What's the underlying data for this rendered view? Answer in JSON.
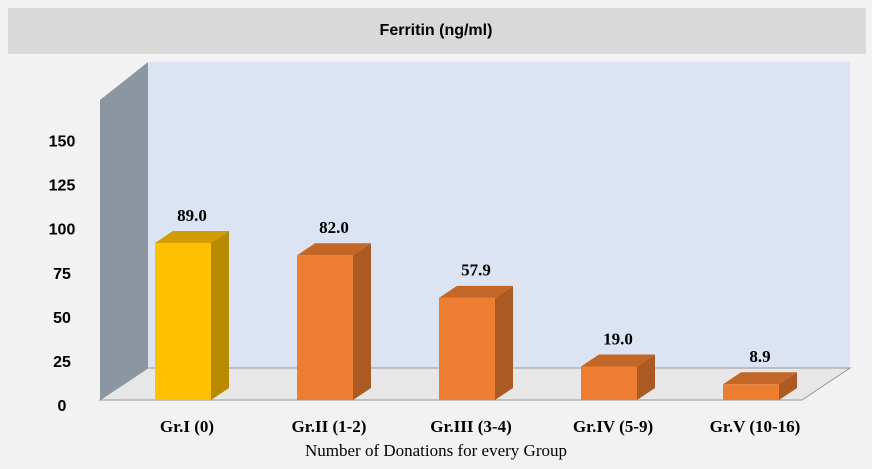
{
  "chart_data": {
    "type": "bar3d",
    "title": "Ferritin (ng/ml)",
    "xlabel": "Number of Donations for every Group",
    "categories": [
      "Gr.I (0)",
      "Gr.II (1-2)",
      "Gr.III (3-4)",
      "Gr.IV (5-9)",
      "Gr.V (10-16)"
    ],
    "values": [
      89.0,
      82.0,
      57.9,
      19.0,
      8.9
    ],
    "value_labels": [
      "89.0",
      "82.0",
      "57.9",
      "19.0",
      "8.9"
    ],
    "colors": [
      "#ffc000",
      "#ed7d31",
      "#ed7d31",
      "#ed7d31",
      "#ed7d31"
    ],
    "ylim": [
      0,
      170
    ],
    "yticks": [
      0,
      25,
      50,
      75,
      100,
      125,
      150
    ],
    "grid": false
  }
}
